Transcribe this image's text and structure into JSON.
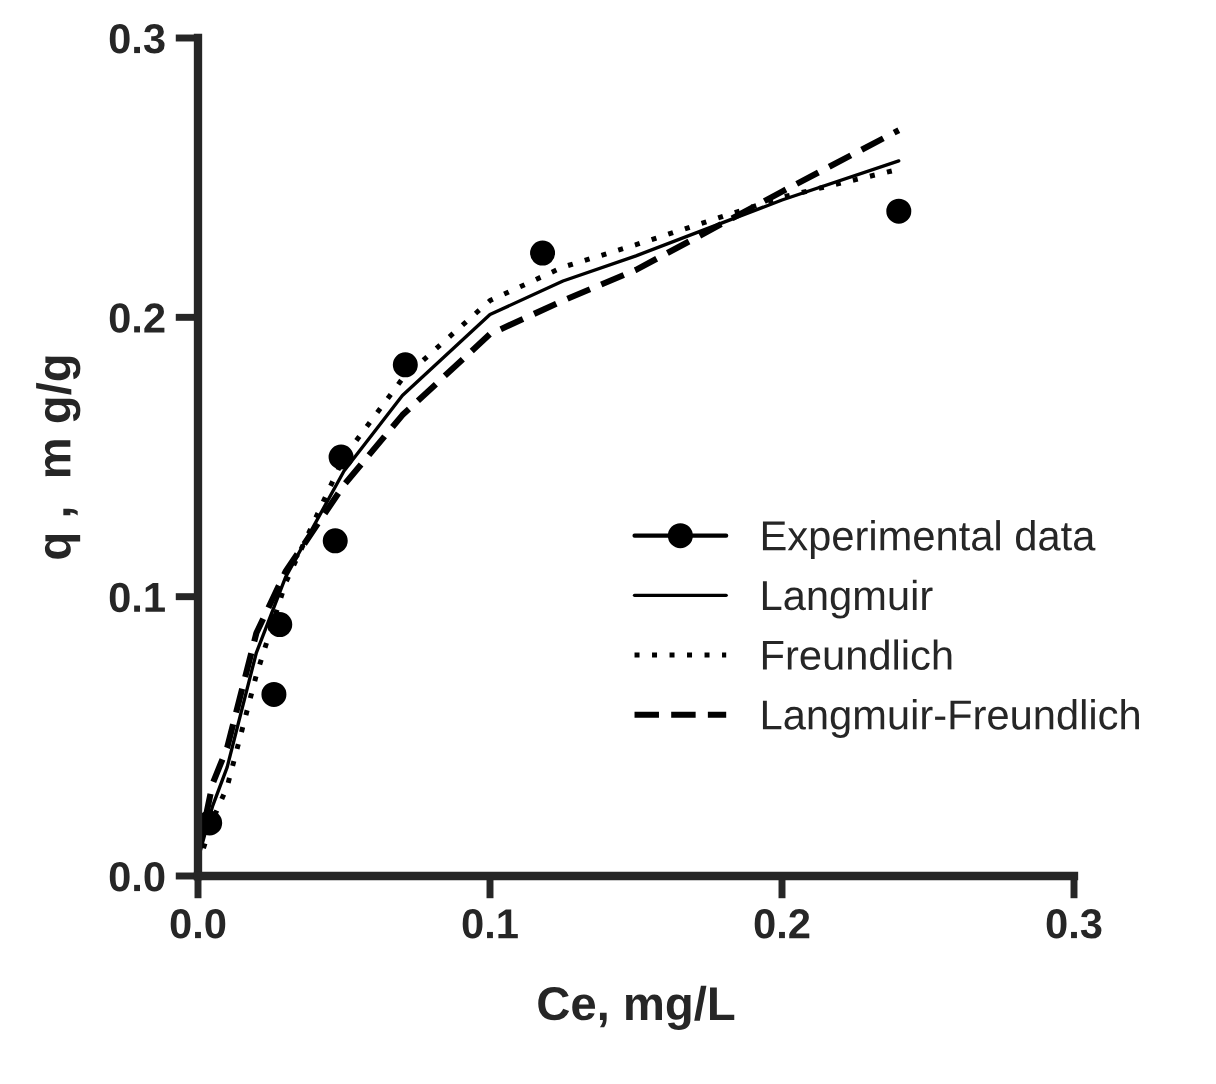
{
  "chart_data": {
    "type": "scatter",
    "xlabel": "Ce, mg/L",
    "ylabel": "q ,  m g/g",
    "xlim": [
      0,
      0.3
    ],
    "ylim": [
      0,
      0.3
    ],
    "xticks": [
      {
        "value": 0,
        "label": "0.0"
      },
      0.1,
      0.2,
      0.3
    ],
    "yticks": [
      {
        "value": 0,
        "label": "0.0"
      },
      0.1,
      0.2,
      0.3
    ],
    "grid": false,
    "legend": "bottom right",
    "series": [
      {
        "name": "Experimental data",
        "marker": "circle",
        "color": "#000000",
        "x": [
          0.004,
          0.026,
          0.028,
          0.047,
          0.049,
          0.071,
          0.118,
          0.24
        ],
        "values": [
          0.019,
          0.065,
          0.09,
          0.12,
          0.15,
          0.183,
          0.223,
          0.238
        ]
      },
      {
        "name": "Langmuir",
        "type": "line",
        "line_style": "solid",
        "color": "#000000",
        "x": [
          0,
          0.005,
          0.01,
          0.02,
          0.03,
          0.05,
          0.07,
          0.1,
          0.125,
          0.15,
          0.2,
          0.24
        ],
        "values": [
          0.006,
          0.025,
          0.039,
          0.08,
          0.107,
          0.145,
          0.172,
          0.201,
          0.213,
          0.222,
          0.242,
          0.256
        ]
      },
      {
        "name": "Freundlich",
        "type": "line",
        "line_style": "dotted",
        "color": "#000000",
        "x": [
          0,
          0.005,
          0.01,
          0.02,
          0.03,
          0.05,
          0.07,
          0.1,
          0.125,
          0.15,
          0.2,
          0.24
        ],
        "values": [
          0.004,
          0.02,
          0.032,
          0.072,
          0.105,
          0.15,
          0.178,
          0.206,
          0.218,
          0.226,
          0.243,
          0.253
        ]
      },
      {
        "name": "Langmuir-Freundlich",
        "type": "line",
        "line_style": "dashed",
        "color": "#000000",
        "x": [
          0,
          0.005,
          0.01,
          0.02,
          0.03,
          0.05,
          0.07,
          0.1,
          0.125,
          0.15,
          0.2,
          0.24
        ],
        "values": [
          0.008,
          0.033,
          0.046,
          0.087,
          0.109,
          0.14,
          0.165,
          0.194,
          0.206,
          0.217,
          0.245,
          0.267
        ]
      }
    ]
  }
}
